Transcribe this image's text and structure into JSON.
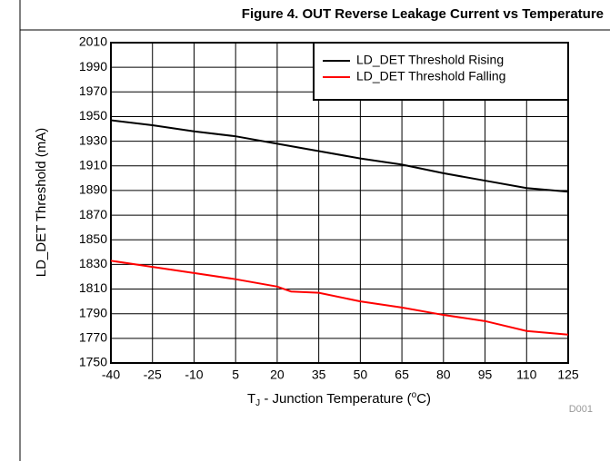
{
  "chart_data": {
    "type": "line",
    "title": "Figure 4. OUT Reverse Leakage Current vs Temperature",
    "x_label": [
      "T",
      "J",
      " - Junction Temperature (",
      "o",
      "C)"
    ],
    "y_label": "LD_DET Threshold (mA)",
    "note": "D001",
    "xlim": [
      -40,
      125
    ],
    "xticks": [
      -40,
      -25,
      -10,
      5,
      20,
      35,
      50,
      65,
      80,
      95,
      110,
      125
    ],
    "ylim": [
      1750,
      2010
    ],
    "yticks": [
      1750,
      1770,
      1790,
      1810,
      1830,
      1850,
      1870,
      1890,
      1910,
      1930,
      1950,
      1970,
      1990,
      2010
    ],
    "grid": true,
    "legend": "upper right",
    "series": [
      {
        "name": "LD_DET Threshold Rising",
        "color": "#000000",
        "x": [
          -40,
          -25,
          -10,
          5,
          20,
          35,
          50,
          65,
          80,
          95,
          110,
          125
        ],
        "values": [
          1947,
          1943,
          1938,
          1934,
          1928,
          1922,
          1916,
          1911,
          1904,
          1898,
          1892,
          1889
        ]
      },
      {
        "name": "LD_DET Threshold Falling",
        "color": "#ff0000",
        "x": [
          -40,
          -25,
          -10,
          5,
          20,
          25,
          35,
          50,
          65,
          80,
          95,
          110,
          125
        ],
        "values": [
          1833,
          1828,
          1823,
          1818,
          1812,
          1808,
          1807,
          1800,
          1795,
          1789,
          1784,
          1776,
          1773
        ]
      }
    ]
  }
}
